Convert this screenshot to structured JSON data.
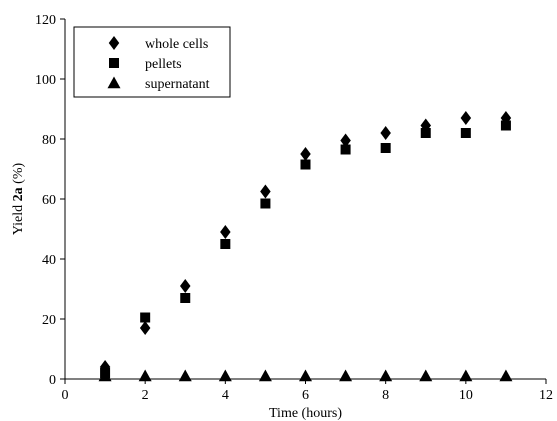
{
  "chart_data": {
    "type": "scatter",
    "xlabel": "Time (hours)",
    "ylabel_parts": [
      "Yield ",
      "2a",
      " (%)"
    ],
    "xlim": [
      0,
      12
    ],
    "ylim": [
      0,
      120
    ],
    "xticks": [
      0,
      2,
      4,
      6,
      8,
      10,
      12
    ],
    "yticks": [
      0,
      20,
      40,
      60,
      80,
      100,
      120
    ],
    "grid": false,
    "legend_position": "top-left",
    "series": [
      {
        "name": "whole cells",
        "marker": "diamond",
        "x": [
          1,
          2,
          3,
          4,
          5,
          6,
          7,
          8,
          9,
          10,
          11
        ],
        "y": [
          4,
          17,
          31,
          49,
          62.5,
          75,
          79.5,
          82,
          84.5,
          87,
          87
        ]
      },
      {
        "name": "pellets",
        "marker": "square",
        "x": [
          1,
          2,
          3,
          4,
          5,
          6,
          7,
          8,
          9,
          10,
          11
        ],
        "y": [
          2,
          20.5,
          27,
          45,
          58.5,
          71.5,
          76.5,
          77,
          82,
          82,
          84.5
        ]
      },
      {
        "name": "supernatant",
        "marker": "triangle",
        "x": [
          1,
          2,
          3,
          4,
          5,
          6,
          7,
          8,
          9,
          10,
          11
        ],
        "y": [
          1,
          1,
          1,
          1,
          1,
          1,
          1,
          1,
          1,
          1,
          1
        ]
      }
    ]
  }
}
